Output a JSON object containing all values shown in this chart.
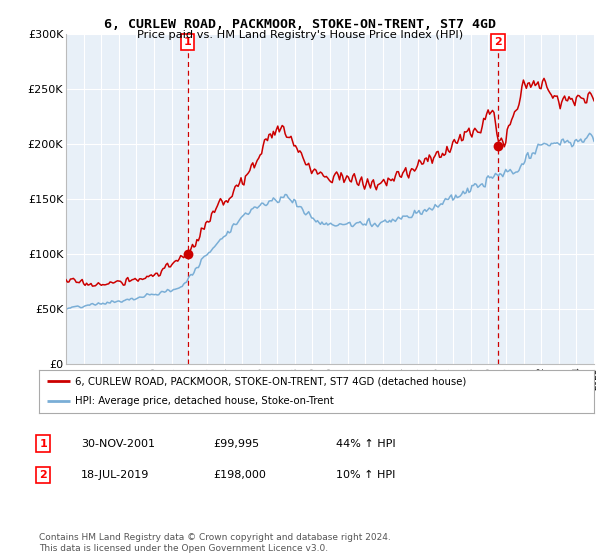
{
  "title": "6, CURLEW ROAD, PACKMOOR, STOKE-ON-TRENT, ST7 4GD",
  "subtitle": "Price paid vs. HM Land Registry's House Price Index (HPI)",
  "ylim": [
    0,
    300000
  ],
  "yticks": [
    0,
    50000,
    100000,
    150000,
    200000,
    250000,
    300000
  ],
  "ytick_labels": [
    "£0",
    "£50K",
    "£100K",
    "£150K",
    "£200K",
    "£250K",
    "£300K"
  ],
  "sale1_year": 2001.917,
  "sale1_price": 99995,
  "sale2_year": 2019.542,
  "sale2_price": 198000,
  "red_line_color": "#cc0000",
  "blue_line_color": "#7aaed6",
  "vline_color": "#cc0000",
  "plot_bg_color": "#e8f0f8",
  "bg_color": "#ffffff",
  "grid_color": "#ffffff",
  "legend_label1": "6, CURLEW ROAD, PACKMOOR, STOKE-ON-TRENT, ST7 4GD (detached house)",
  "legend_label2": "HPI: Average price, detached house, Stoke-on-Trent",
  "table_rows": [
    {
      "num": "1",
      "date": "30-NOV-2001",
      "price": "£99,995",
      "change": "44% ↑ HPI"
    },
    {
      "num": "2",
      "date": "18-JUL-2019",
      "price": "£198,000",
      "change": "10% ↑ HPI"
    }
  ],
  "footnote": "Contains HM Land Registry data © Crown copyright and database right 2024.\nThis data is licensed under the Open Government Licence v3.0."
}
